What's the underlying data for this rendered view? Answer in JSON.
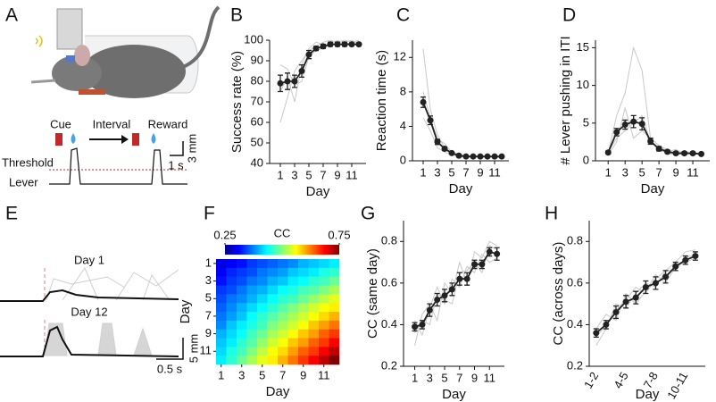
{
  "chart_data": [
    {
      "type": "line",
      "panel_label": "B",
      "xlabel": "Day",
      "ylabel": "Success rate (%)",
      "x": [
        1,
        2,
        3,
        4,
        5,
        6,
        7,
        8,
        9,
        10,
        11,
        12
      ],
      "xlim": [
        -0.5,
        13
      ],
      "xticks": [
        1,
        3,
        5,
        7,
        9,
        11
      ],
      "ylim": [
        40,
        100
      ],
      "yticks": [
        40,
        50,
        60,
        70,
        80,
        90,
        100
      ],
      "series": [
        {
          "color": "#c8c8c8",
          "values": [
            60,
            72,
            85,
            90,
            95,
            97,
            99,
            100,
            99,
            100,
            99,
            100
          ]
        },
        {
          "color": "#c8c8c8",
          "values": [
            88,
            86,
            78,
            80,
            92,
            95,
            96,
            98,
            100,
            98,
            99,
            99
          ]
        },
        {
          "color": "#c8c8c8",
          "values": [
            75,
            82,
            70,
            88,
            96,
            99,
            98,
            97,
            99,
            99,
            100,
            98
          ]
        },
        {
          "color": "#222222",
          "values": [
            79,
            80,
            80,
            85,
            93,
            96,
            97,
            98,
            98,
            98,
            98,
            98
          ],
          "errors": [
            4,
            4,
            3,
            3,
            2,
            1,
            1,
            1,
            1,
            1,
            0.5,
            0.5
          ]
        }
      ]
    },
    {
      "type": "line",
      "panel_label": "C",
      "xlabel": "Day",
      "ylabel": "Reaction time (s)",
      "x": [
        1,
        2,
        3,
        4,
        5,
        6,
        7,
        8,
        9,
        10,
        11,
        12
      ],
      "xlim": [
        -0.5,
        13
      ],
      "xticks": [
        1,
        3,
        5,
        7,
        9,
        11
      ],
      "ylim": [
        0,
        14
      ],
      "yticks": [
        0,
        4,
        8,
        12
      ],
      "series": [
        {
          "color": "#c8c8c8",
          "values": [
            13,
            6,
            3,
            1.5,
            1,
            0.6,
            0.4,
            0.5,
            0.4,
            0.5,
            0.4,
            0.4
          ]
        },
        {
          "color": "#c8c8c8",
          "values": [
            8,
            5,
            2.5,
            2,
            1,
            0.8,
            0.6,
            0.5,
            0.5,
            0.4,
            0.5,
            0.5
          ]
        },
        {
          "color": "#c8c8c8",
          "values": [
            5,
            3.5,
            1.5,
            1,
            0.7,
            0.5,
            0.5,
            0.4,
            0.5,
            0.5,
            0.4,
            0.4
          ]
        },
        {
          "color": "#222222",
          "values": [
            6.8,
            4.7,
            2.2,
            1.4,
            0.9,
            0.6,
            0.5,
            0.5,
            0.5,
            0.5,
            0.5,
            0.5
          ],
          "errors": [
            0.6,
            0.5,
            0.3,
            0.2,
            0.1,
            0.1,
            0.1,
            0.1,
            0.1,
            0.1,
            0.1,
            0.1
          ]
        }
      ]
    },
    {
      "type": "line",
      "panel_label": "D",
      "xlabel": "Day",
      "ylabel": "# Lever pushing in ITI",
      "x": [
        1,
        2,
        3,
        4,
        5,
        6,
        7,
        8,
        9,
        10,
        11,
        12
      ],
      "xlim": [
        -0.5,
        13
      ],
      "xticks": [
        1,
        3,
        5,
        7,
        9,
        11
      ],
      "ylim": [
        0,
        16
      ],
      "yticks": [
        0,
        5,
        10,
        15
      ],
      "series": [
        {
          "color": "#c8c8c8",
          "values": [
            1,
            6,
            9,
            15,
            12,
            3,
            2,
            1.5,
            1,
            1.2,
            1,
            0.8
          ]
        },
        {
          "color": "#c8c8c8",
          "values": [
            1.2,
            3,
            4,
            5,
            6,
            2.5,
            1.5,
            1,
            0.8,
            1,
            0.9,
            1
          ]
        },
        {
          "color": "#c8c8c8",
          "values": [
            0.8,
            2.5,
            7,
            3,
            4,
            3,
            2,
            1.2,
            1.5,
            0.9,
            1,
            0.7
          ]
        },
        {
          "color": "#222222",
          "values": [
            1.1,
            3.8,
            4.8,
            5.2,
            4.9,
            2.6,
            1.6,
            1.2,
            1.0,
            1.0,
            1.0,
            0.9
          ],
          "errors": [
            0.2,
            0.5,
            0.6,
            0.8,
            0.8,
            0.4,
            0.3,
            0.2,
            0.2,
            0.2,
            0.2,
            0.1
          ]
        }
      ]
    },
    {
      "type": "heatmap",
      "panel_label": "F",
      "xlabel": "Day",
      "ylabel": "Day",
      "colorbar_label": "CC",
      "colormap": "jet",
      "zlim": [
        0.25,
        0.75
      ],
      "zticks": [
        0.25,
        0.75
      ],
      "xlim": [
        0.5,
        12.5
      ],
      "ylim": [
        0.5,
        12.5
      ],
      "xticks": [
        1,
        3,
        5,
        7,
        9,
        11
      ],
      "yticks": [
        1,
        3,
        5,
        7,
        9,
        11
      ],
      "z": [
        [
          0.3,
          0.31,
          0.32,
          0.34,
          0.35,
          0.36,
          0.37,
          0.38,
          0.4,
          0.41,
          0.42,
          0.43
        ],
        [
          0.31,
          0.33,
          0.34,
          0.35,
          0.37,
          0.38,
          0.39,
          0.41,
          0.42,
          0.43,
          0.45,
          0.46
        ],
        [
          0.32,
          0.34,
          0.35,
          0.37,
          0.38,
          0.4,
          0.41,
          0.43,
          0.44,
          0.46,
          0.47,
          0.49
        ],
        [
          0.34,
          0.35,
          0.37,
          0.39,
          0.4,
          0.42,
          0.44,
          0.45,
          0.47,
          0.48,
          0.5,
          0.52
        ],
        [
          0.35,
          0.37,
          0.38,
          0.4,
          0.42,
          0.44,
          0.46,
          0.47,
          0.49,
          0.51,
          0.53,
          0.55
        ],
        [
          0.36,
          0.38,
          0.4,
          0.42,
          0.44,
          0.46,
          0.48,
          0.5,
          0.52,
          0.54,
          0.56,
          0.57
        ],
        [
          0.37,
          0.39,
          0.41,
          0.44,
          0.46,
          0.48,
          0.5,
          0.52,
          0.54,
          0.56,
          0.58,
          0.6
        ],
        [
          0.38,
          0.41,
          0.43,
          0.45,
          0.47,
          0.5,
          0.52,
          0.54,
          0.56,
          0.59,
          0.61,
          0.63
        ],
        [
          0.4,
          0.42,
          0.44,
          0.47,
          0.49,
          0.52,
          0.54,
          0.56,
          0.59,
          0.61,
          0.64,
          0.66
        ],
        [
          0.41,
          0.43,
          0.46,
          0.48,
          0.51,
          0.54,
          0.56,
          0.59,
          0.61,
          0.64,
          0.66,
          0.69
        ],
        [
          0.42,
          0.45,
          0.47,
          0.5,
          0.53,
          0.56,
          0.58,
          0.61,
          0.64,
          0.66,
          0.69,
          0.72
        ],
        [
          0.43,
          0.46,
          0.49,
          0.52,
          0.55,
          0.57,
          0.6,
          0.63,
          0.66,
          0.69,
          0.72,
          0.75
        ]
      ]
    },
    {
      "type": "line",
      "panel_label": "G",
      "xlabel": "Day",
      "ylabel": "CC (same day)",
      "x": [
        1,
        2,
        3,
        4,
        5,
        6,
        7,
        8,
        9,
        10,
        11,
        12
      ],
      "xlim": [
        -0.5,
        13
      ],
      "xticks": [
        1,
        3,
        5,
        7,
        9,
        11
      ],
      "ylim": [
        0.2,
        0.9
      ],
      "yticks": [
        0.2,
        0.4,
        0.6,
        0.8
      ],
      "series": [
        {
          "color": "#c8c8c8",
          "values": [
            0.3,
            0.45,
            0.5,
            0.42,
            0.6,
            0.55,
            0.7,
            0.6,
            0.75,
            0.72,
            0.8,
            0.78
          ]
        },
        {
          "color": "#c8c8c8",
          "values": [
            0.42,
            0.35,
            0.48,
            0.58,
            0.5,
            0.62,
            0.58,
            0.68,
            0.65,
            0.74,
            0.7,
            0.72
          ]
        },
        {
          "color": "#c8c8c8",
          "values": [
            0.36,
            0.42,
            0.4,
            0.55,
            0.52,
            0.5,
            0.65,
            0.66,
            0.7,
            0.65,
            0.78,
            0.76
          ]
        },
        {
          "color": "#222222",
          "values": [
            0.39,
            0.4,
            0.47,
            0.52,
            0.54,
            0.57,
            0.62,
            0.62,
            0.69,
            0.69,
            0.75,
            0.74
          ],
          "errors": [
            0.02,
            0.02,
            0.03,
            0.03,
            0.03,
            0.03,
            0.03,
            0.03,
            0.02,
            0.02,
            0.02,
            0.03
          ]
        }
      ]
    },
    {
      "type": "line",
      "panel_label": "H",
      "xlabel": "Day",
      "ylabel": "CC (across days)",
      "categories": [
        "1-2",
        null,
        null,
        "4-5",
        null,
        null,
        "7-8",
        null,
        null,
        "10-11",
        null
      ],
      "ylim": [
        0.2,
        0.9
      ],
      "yticks": [
        0.2,
        0.4,
        0.6,
        0.8
      ],
      "series": [
        {
          "color": "#c8c8c8",
          "values": [
            0.3,
            0.38,
            0.5,
            0.48,
            0.55,
            0.6,
            0.58,
            0.66,
            0.7,
            0.75,
            0.76
          ]
        },
        {
          "color": "#c8c8c8",
          "values": [
            0.38,
            0.45,
            0.42,
            0.55,
            0.5,
            0.56,
            0.64,
            0.6,
            0.68,
            0.7,
            0.72
          ]
        },
        {
          "color": "#c8c8c8",
          "values": [
            0.34,
            0.4,
            0.47,
            0.52,
            0.58,
            0.55,
            0.62,
            0.66,
            0.66,
            0.72,
            0.74
          ]
        },
        {
          "color": "#222222",
          "values": [
            0.36,
            0.4,
            0.46,
            0.51,
            0.53,
            0.58,
            0.6,
            0.63,
            0.68,
            0.71,
            0.73
          ],
          "errors": [
            0.02,
            0.02,
            0.03,
            0.03,
            0.03,
            0.03,
            0.03,
            0.03,
            0.02,
            0.02,
            0.02
          ]
        }
      ]
    }
  ],
  "panel_a": {
    "label": "A",
    "cue": "Cue",
    "interval": "Interval",
    "reward": "Reward",
    "threshold": "Threshold",
    "lever": "Lever",
    "time_scale": "1 s",
    "amp_scale": "3 mm"
  },
  "panel_e": {
    "label": "E",
    "day1": "Day 1",
    "day12": "Day 12",
    "amp_scale": "5 mm",
    "time_scale": "0.5 s"
  }
}
